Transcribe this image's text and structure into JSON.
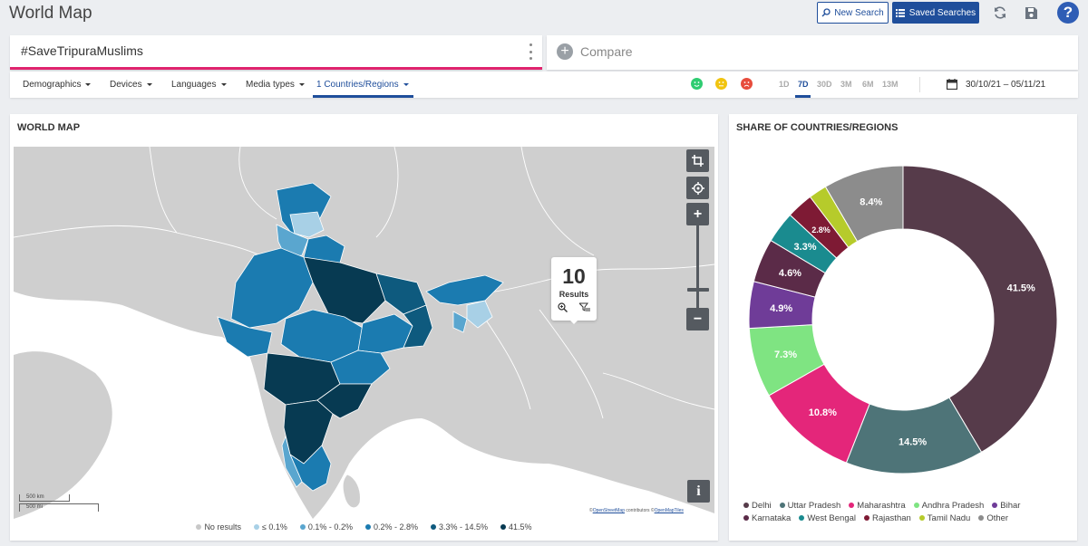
{
  "header": {
    "title": "World Map",
    "new_search_label": "New Search",
    "saved_searches_label": "Saved Searches",
    "help_label": "?"
  },
  "search": {
    "query": "#SaveTripuraMuslims",
    "compare_label": "Compare"
  },
  "filters": {
    "items": [
      "Demographics",
      "Devices",
      "Languages",
      "Media types",
      "1 Countries/Regions"
    ],
    "active": "1 Countries/Regions"
  },
  "sentiment": {
    "positive": "#2ecc71",
    "neutral": "#f1c40f",
    "negative": "#e74c3c"
  },
  "periods": {
    "items": [
      "1D",
      "7D",
      "30D",
      "3M",
      "6M",
      "13M"
    ],
    "active": "7D"
  },
  "date_range": "30/10/21 – 05/11/21",
  "map": {
    "title": "WORLD MAP",
    "results_count": "10",
    "results_label": "Results",
    "scale_km": "500 km",
    "scale_mi": "500 mi",
    "attribution_prefix": "©",
    "attribution_osm": "OpenStreetMap",
    "attribution_mid": " contributors ©",
    "attribution_tiles": "OpenMapTiles",
    "info_label": "i",
    "zoom_in": "+",
    "zoom_out": "−",
    "legend": [
      {
        "label": "No results",
        "color": "#c8c8c8"
      },
      {
        "label": "≤ 0.1%",
        "color": "#a8d0e6"
      },
      {
        "label": "0.1% - 0.2%",
        "color": "#5aa6cf"
      },
      {
        "label": "0.2% - 2.8%",
        "color": "#1b7bb0"
      },
      {
        "label": "3.3% - 14.5%",
        "color": "#0e5a7e"
      },
      {
        "label": "41.5%",
        "color": "#073a52"
      }
    ]
  },
  "share": {
    "title": "SHARE OF COUNTRIES/REGIONS"
  },
  "chart_data": {
    "type": "pie",
    "categories": [
      "Delhi",
      "Uttar Pradesh",
      "Maharashtra",
      "Andhra Pradesh",
      "Bihar",
      "Karnataka",
      "West Bengal",
      "Rajasthan",
      "Tamil Nadu",
      "Other"
    ],
    "values": [
      41.5,
      14.5,
      10.8,
      7.3,
      4.9,
      4.6,
      3.3,
      2.8,
      1.9,
      8.4
    ],
    "labels": [
      "41.5%",
      "14.5%",
      "10.8%",
      "7.3%",
      "4.9%",
      "4.6%",
      "3.3%",
      "2.8%",
      "",
      "8.4%"
    ],
    "colors": [
      "#563b4a",
      "#4e7478",
      "#e4267a",
      "#7fe482",
      "#6f3c98",
      "#5b2b48",
      "#1a8b8f",
      "#7e1a34",
      "#b6cb2b",
      "#8c8c8c"
    ],
    "donut": true,
    "legend_position": "bottom"
  }
}
